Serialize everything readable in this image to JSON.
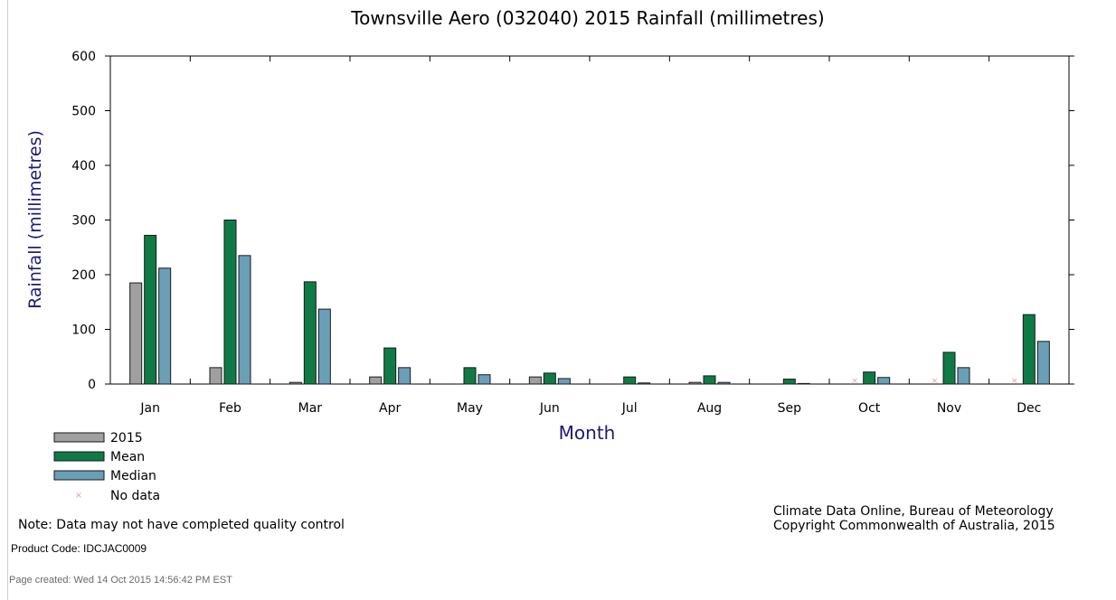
{
  "chart_data": {
    "type": "bar",
    "title": "Townsville Aero (032040) 2015 Rainfall (millimetres)",
    "xlabel": "Month",
    "ylabel": "Rainfall (millimetres)",
    "ylim": [
      0,
      600
    ],
    "yticks": [
      "0",
      "100",
      "200",
      "300",
      "400",
      "500",
      "600"
    ],
    "categories": [
      "Jan",
      "Feb",
      "Mar",
      "Apr",
      "May",
      "Jun",
      "Jul",
      "Aug",
      "Sep",
      "Oct",
      "Nov",
      "Dec"
    ],
    "series": [
      {
        "name": "2015",
        "color": "#a0a0a0",
        "values": [
          185,
          30,
          3,
          13,
          0,
          13,
          0,
          3,
          0,
          0,
          0,
          0
        ]
      },
      {
        "name": "Mean",
        "color": "#0f7a45",
        "values": [
          272,
          300,
          187,
          66,
          30,
          20,
          13,
          15,
          9,
          22,
          58,
          127
        ]
      },
      {
        "name": "Median",
        "color": "#6a9fb8",
        "values": [
          212,
          235,
          137,
          30,
          17,
          10,
          2,
          3,
          1,
          12,
          30,
          78
        ]
      }
    ],
    "no_data_label": "No data",
    "no_data_months": [
      "Oct",
      "Nov",
      "Dec"
    ],
    "grid": false,
    "legend_placement": "bottom-left"
  },
  "footer": {
    "note": "Note: Data may not have completed quality control",
    "credit_line1": "Climate Data Online, Bureau of Meteorology",
    "credit_line2": "Copyright Commonwealth of Australia, 2015",
    "product_code": "Product Code: IDCJAC0009",
    "page_created": "Page created: Wed 14 Oct 2015 14:56:42 PM EST"
  }
}
